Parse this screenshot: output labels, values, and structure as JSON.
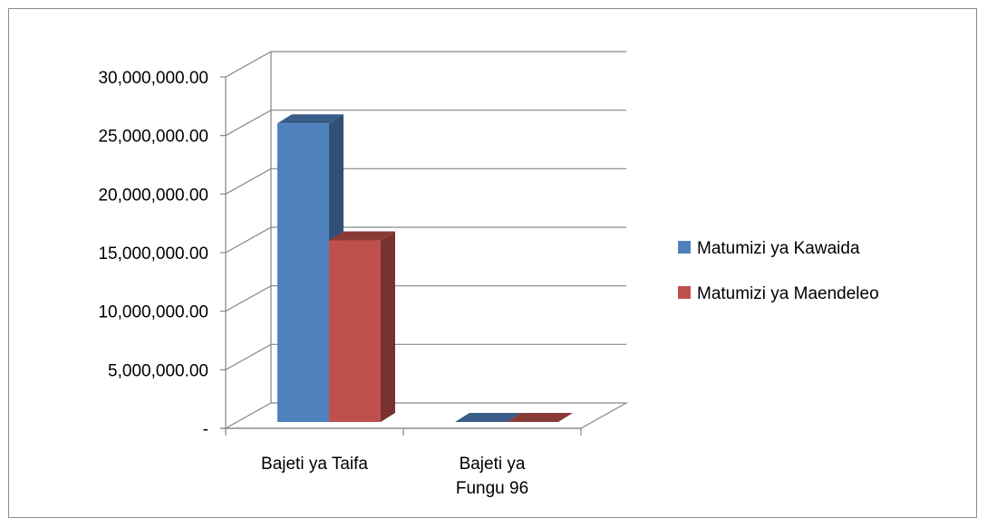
{
  "chart_data": {
    "type": "bar",
    "style": "3d-clustered-column",
    "title": "",
    "xlabel": "",
    "ylabel": "",
    "categories": [
      "Bajeti ya Taifa",
      "Bajeti ya Fungu 96"
    ],
    "category_label_lines": [
      [
        "Bajeti ya Taifa"
      ],
      [
        "Bajeti ya",
        "Fungu 96"
      ]
    ],
    "series": [
      {
        "name": "Matumizi ya Kawaida",
        "color": "#4F81BD",
        "values": [
          25500000,
          0
        ]
      },
      {
        "name": "Matumizi ya Maendeleo",
        "color": "#C0504D",
        "values": [
          15500000,
          0
        ]
      }
    ],
    "ylim": [
      0,
      30000000
    ],
    "yticks": [
      0,
      5000000,
      10000000,
      15000000,
      20000000,
      25000000,
      30000000
    ],
    "ytick_labels": [
      "-",
      "5,000,000.00",
      "10,000,000.00",
      "15,000,000.00",
      "20,000,000.00",
      "25,000,000.00",
      "30,000,000.00"
    ],
    "grid": true,
    "legend_position": "right"
  }
}
